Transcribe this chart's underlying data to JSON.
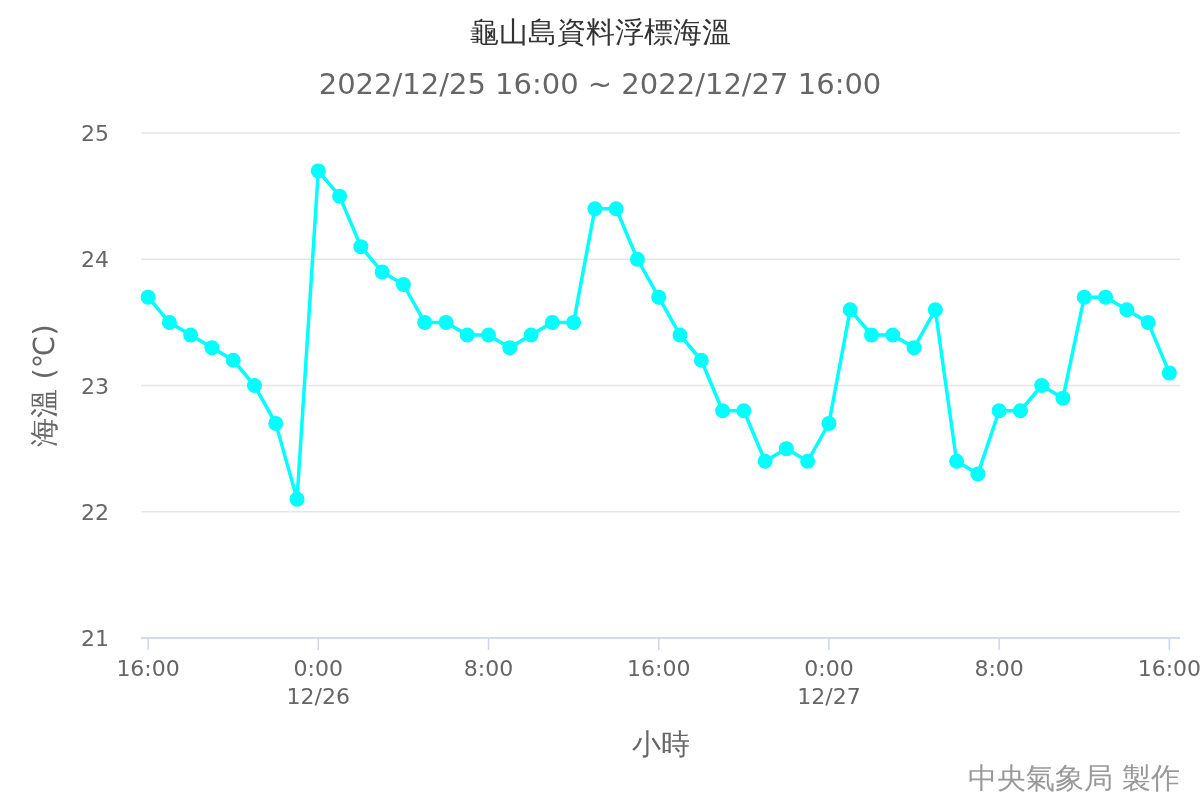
{
  "chart_data": {
    "type": "line",
    "title": "龜山島資料浮標海溫",
    "subtitle": "2022/12/25 16:00 ~ 2022/12/27 16:00",
    "xlabel": "小時",
    "ylabel": "海溫 (℃)",
    "annotations": [
      "中央氣象局 製作"
    ],
    "x": [
      "2022-12-25T16:00",
      "2022-12-25T17:00",
      "2022-12-25T18:00",
      "2022-12-25T19:00",
      "2022-12-25T20:00",
      "2022-12-25T21:00",
      "2022-12-25T22:00",
      "2022-12-25T23:00",
      "2022-12-26T00:00",
      "2022-12-26T01:00",
      "2022-12-26T02:00",
      "2022-12-26T03:00",
      "2022-12-26T04:00",
      "2022-12-26T05:00",
      "2022-12-26T06:00",
      "2022-12-26T07:00",
      "2022-12-26T08:00",
      "2022-12-26T09:00",
      "2022-12-26T10:00",
      "2022-12-26T11:00",
      "2022-12-26T12:00",
      "2022-12-26T13:00",
      "2022-12-26T14:00",
      "2022-12-26T15:00",
      "2022-12-26T16:00",
      "2022-12-26T17:00",
      "2022-12-26T18:00",
      "2022-12-26T19:00",
      "2022-12-26T20:00",
      "2022-12-26T21:00",
      "2022-12-26T22:00",
      "2022-12-26T23:00",
      "2022-12-27T00:00",
      "2022-12-27T01:00",
      "2022-12-27T02:00",
      "2022-12-27T03:00",
      "2022-12-27T04:00",
      "2022-12-27T05:00",
      "2022-12-27T06:00",
      "2022-12-27T07:00",
      "2022-12-27T08:00",
      "2022-12-27T09:00",
      "2022-12-27T10:00",
      "2022-12-27T11:00",
      "2022-12-27T12:00",
      "2022-12-27T13:00",
      "2022-12-27T14:00",
      "2022-12-27T15:00",
      "2022-12-27T16:00"
    ],
    "series": [
      {
        "color": "#00ffff",
        "values": [
          23.7,
          23.5,
          23.4,
          23.3,
          23.2,
          23.0,
          22.7,
          22.1,
          24.7,
          24.5,
          24.1,
          23.9,
          23.8,
          23.5,
          23.5,
          23.4,
          23.4,
          23.3,
          23.4,
          23.5,
          23.5,
          24.4,
          24.4,
          24.0,
          23.7,
          23.4,
          23.2,
          22.8,
          22.8,
          22.4,
          22.5,
          22.4,
          22.7,
          23.6,
          23.4,
          23.4,
          23.3,
          23.6,
          22.4,
          22.3,
          22.8,
          22.8,
          23.0,
          22.9,
          23.7,
          23.7,
          23.6,
          23.5,
          23.1
        ]
      }
    ],
    "xlim": [
      "2022-12-25T15:40",
      "2022-12-27T16:30"
    ],
    "xticks": [
      {
        "value": "2022-12-25T16:00",
        "label": "16:00"
      },
      {
        "value": "2022-12-26T00:00",
        "label": "0:00\n12/26"
      },
      {
        "value": "2022-12-26T08:00",
        "label": "8:00"
      },
      {
        "value": "2022-12-26T16:00",
        "label": "16:00"
      },
      {
        "value": "2022-12-27T00:00",
        "label": "0:00\n12/27"
      },
      {
        "value": "2022-12-27T08:00",
        "label": "8:00"
      },
      {
        "value": "2022-12-27T16:00",
        "label": "16:00"
      }
    ],
    "ylim": [
      21,
      25
    ],
    "yticks": [
      21,
      22,
      23,
      24,
      25
    ],
    "grid": "y",
    "marker": "circle",
    "line_style": "solid"
  }
}
